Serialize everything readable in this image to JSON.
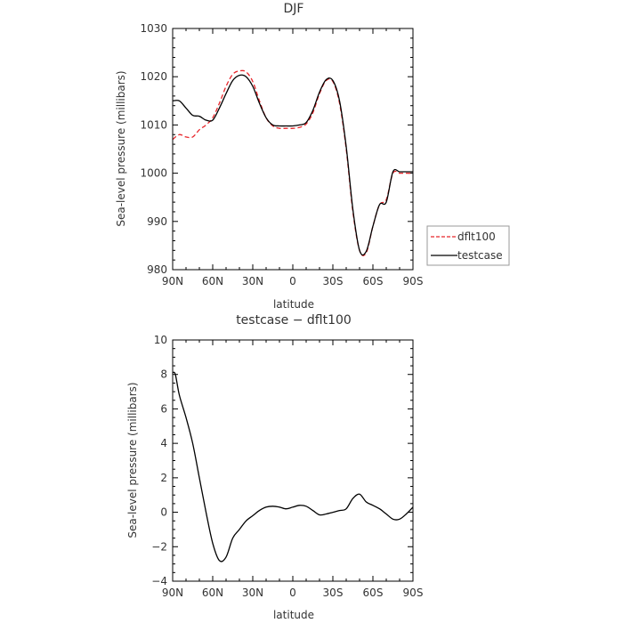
{
  "chart_data": [
    {
      "type": "line",
      "title": "DJF",
      "xlabel": "latitude",
      "ylabel": "Sea-level pressure (millibars)",
      "xlim": [
        -90,
        90
      ],
      "ylim": [
        980,
        1030
      ],
      "xticks": [
        -90,
        -60,
        -30,
        0,
        30,
        60,
        90
      ],
      "xtick_labels": [
        "90N",
        "60N",
        "30N",
        "0",
        "30S",
        "60S",
        "90S"
      ],
      "yticks": [
        980,
        990,
        1000,
        1010,
        1020,
        1030
      ],
      "ytick_labels": [
        "980",
        "990",
        "1000",
        "1010",
        "1020",
        "1030"
      ],
      "legend_position": "right",
      "series": [
        {
          "name": "dflt100",
          "color": "#e8262b",
          "dash": "dashed",
          "x": [
            -90,
            -85,
            -80,
            -75,
            -70,
            -65,
            -60,
            -55,
            -50,
            -45,
            -40,
            -35,
            -30,
            -25,
            -20,
            -15,
            -10,
            -5,
            0,
            5,
            10,
            15,
            20,
            25,
            30,
            35,
            40,
            45,
            50,
            55,
            60,
            65,
            70,
            75,
            80,
            85,
            90
          ],
          "y": [
            1007,
            1008,
            1007.5,
            1007.5,
            1009,
            1010,
            1011.5,
            1014.5,
            1018,
            1020.5,
            1021.2,
            1021,
            1019,
            1015,
            1011.5,
            1009.8,
            1009.3,
            1009.3,
            1009.3,
            1009.5,
            1010.2,
            1012.5,
            1016.5,
            1019.2,
            1019,
            1014.5,
            1005,
            992,
            984,
            983.5,
            989,
            993.5,
            994.5,
            1000,
            1000,
            1000,
            1000
          ]
        },
        {
          "name": "testcase",
          "color": "#000000",
          "dash": "solid",
          "x": [
            -90,
            -85,
            -80,
            -75,
            -70,
            -65,
            -60,
            -55,
            -50,
            -45,
            -40,
            -35,
            -30,
            -25,
            -20,
            -15,
            -10,
            -5,
            0,
            5,
            10,
            15,
            20,
            25,
            30,
            35,
            40,
            45,
            50,
            55,
            60,
            65,
            70,
            75,
            80,
            85,
            90
          ],
          "y": [
            1015,
            1015,
            1013.5,
            1012,
            1011.8,
            1011,
            1011,
            1013.5,
            1016.5,
            1019.2,
            1020.3,
            1020,
            1018,
            1014.5,
            1011.5,
            1010,
            1009.8,
            1009.8,
            1009.8,
            1010,
            1010.5,
            1013,
            1016.8,
            1019.4,
            1019.2,
            1015,
            1005.5,
            992.5,
            984,
            983.8,
            989,
            993.5,
            994,
            1000.3,
            1000.3,
            1000.3,
            1000.3
          ]
        }
      ]
    },
    {
      "type": "line",
      "title": "testcase − dflt100",
      "xlabel": "latitude",
      "ylabel": "Sea-level pressure (millibars)",
      "xlim": [
        -90,
        90
      ],
      "ylim": [
        -4,
        10
      ],
      "xticks": [
        -90,
        -60,
        -30,
        0,
        30,
        60,
        90
      ],
      "xtick_labels": [
        "90N",
        "60N",
        "30N",
        "0",
        "30S",
        "60S",
        "90S"
      ],
      "yticks": [
        -4,
        -2,
        0,
        2,
        4,
        6,
        8,
        10
      ],
      "ytick_labels": [
        "−4",
        "−2",
        "0",
        "2",
        "4",
        "6",
        "8",
        "10"
      ],
      "series": [
        {
          "color": "#000000",
          "dash": "solid",
          "x": [
            -90,
            -88,
            -85,
            -80,
            -75,
            -70,
            -65,
            -60,
            -55,
            -50,
            -45,
            -40,
            -35,
            -30,
            -25,
            -20,
            -15,
            -10,
            -5,
            0,
            5,
            10,
            15,
            20,
            25,
            30,
            35,
            40,
            45,
            50,
            55,
            60,
            65,
            70,
            75,
            80,
            85,
            90
          ],
          "y": [
            8.1,
            8,
            6.8,
            5.5,
            4,
            2,
            0,
            -1.8,
            -2.8,
            -2.6,
            -1.5,
            -1,
            -0.5,
            -0.2,
            0.1,
            0.3,
            0.35,
            0.3,
            0.2,
            0.3,
            0.4,
            0.35,
            0.1,
            -0.15,
            -0.1,
            0,
            0.1,
            0.2,
            0.8,
            1.05,
            0.6,
            0.4,
            0.2,
            -0.1,
            -0.4,
            -0.4,
            -0.1,
            0.3
          ]
        }
      ]
    }
  ]
}
